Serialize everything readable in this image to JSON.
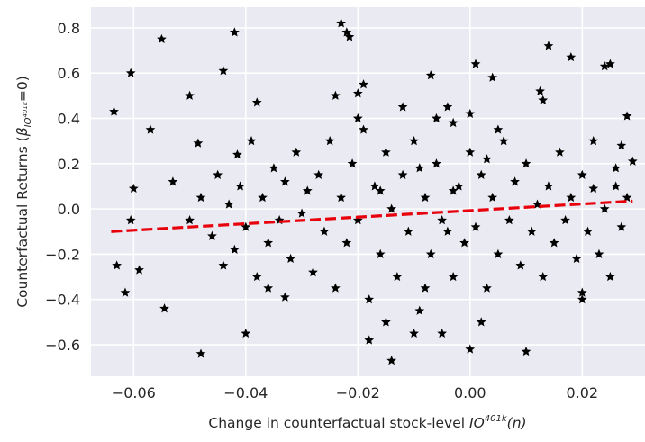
{
  "chart_data": {
    "type": "scatter",
    "xlabel": {
      "text": "Change in counterfactual stock-level ",
      "var": "IO",
      "sup": "401k",
      "arg": "(n)"
    },
    "ylabel": {
      "text": "Counterfactual Returns (",
      "beta": "β",
      "sub": "IO",
      "subsup": "401k",
      "end": "=0)"
    },
    "xlim": [
      -0.0676,
      0.0312
    ],
    "ylim": [
      -0.739,
      0.891
    ],
    "xticks": [
      {
        "value": -0.06,
        "label": "−0.06"
      },
      {
        "value": -0.04,
        "label": "−0.04"
      },
      {
        "value": -0.02,
        "label": "−0.02"
      },
      {
        "value": 0.0,
        "label": "0.00"
      },
      {
        "value": 0.02,
        "label": "0.02"
      }
    ],
    "yticks": [
      {
        "value": -0.6,
        "label": "−0.6"
      },
      {
        "value": -0.4,
        "label": "−0.4"
      },
      {
        "value": -0.2,
        "label": "−0.2"
      },
      {
        "value": 0.0,
        "label": "0.0"
      },
      0.2,
      0.4,
      0.6,
      0.8
    ],
    "grid": true,
    "color": "#000000",
    "x": [
      -0.0635,
      -0.063,
      -0.0615,
      -0.0605,
      -0.06,
      -0.0605,
      -0.059,
      -0.055,
      -0.0545,
      -0.057,
      -0.053,
      -0.05,
      -0.048,
      -0.0485,
      -0.044,
      -0.042,
      -0.04,
      -0.0415,
      -0.038,
      -0.023,
      -0.022,
      -0.0215,
      -0.019,
      -0.02,
      -0.024,
      -0.014,
      -0.018,
      -0.007,
      -0.003,
      0.001,
      0.004,
      0.01,
      0.014,
      0.018,
      0.024,
      0.025,
      0.028,
      0.029,
      0.027,
      0.02,
      0.02,
      0.0125,
      0.013,
      0.0,
      0.002,
      -0.005,
      0.022,
      0.026,
      -0.033,
      -0.036,
      -0.05,
      -0.048,
      -0.046,
      -0.045,
      -0.044,
      -0.043,
      -0.042,
      -0.041,
      -0.04,
      -0.039,
      -0.038,
      -0.037,
      -0.036,
      -0.035,
      -0.034,
      -0.033,
      -0.032,
      -0.031,
      -0.03,
      -0.029,
      -0.028,
      -0.027,
      -0.026,
      -0.025,
      -0.024,
      -0.023,
      -0.022,
      -0.021,
      -0.02,
      -0.019,
      -0.018,
      -0.017,
      -0.016,
      -0.015,
      -0.014,
      -0.013,
      -0.012,
      -0.011,
      -0.01,
      -0.009,
      -0.008,
      -0.007,
      -0.006,
      -0.005,
      -0.004,
      -0.003,
      -0.002,
      -0.001,
      0.0,
      0.001,
      0.002,
      0.003,
      0.004,
      0.005,
      0.006,
      0.007,
      0.008,
      0.009,
      0.01,
      0.011,
      0.012,
      0.013,
      0.014,
      0.015,
      0.016,
      0.017,
      0.018,
      0.019,
      0.02,
      0.021,
      0.022,
      0.023,
      0.024,
      0.025,
      0.026,
      0.027,
      0.028,
      -0.015,
      -0.01,
      -0.006,
      0.0,
      -0.008,
      0.005,
      -0.02,
      -0.012,
      -0.003,
      -0.009,
      -0.016,
      -0.004,
      0.003
    ],
    "values": [
      0.43,
      -0.25,
      -0.37,
      0.6,
      0.09,
      -0.05,
      -0.27,
      0.75,
      -0.44,
      0.35,
      0.12,
      0.5,
      -0.64,
      0.29,
      0.61,
      0.78,
      -0.55,
      0.24,
      0.47,
      0.82,
      0.78,
      0.76,
      0.55,
      0.51,
      0.5,
      -0.67,
      -0.58,
      0.59,
      0.38,
      0.64,
      0.58,
      -0.63,
      0.72,
      0.67,
      0.63,
      0.64,
      0.41,
      0.21,
      0.28,
      -0.37,
      -0.4,
      0.52,
      0.48,
      -0.62,
      -0.5,
      -0.55,
      0.09,
      0.1,
      -0.39,
      -0.35,
      -0.05,
      0.05,
      -0.12,
      0.15,
      -0.25,
      0.02,
      -0.18,
      0.1,
      -0.08,
      0.3,
      -0.3,
      0.05,
      -0.15,
      0.18,
      -0.05,
      0.12,
      -0.22,
      0.25,
      -0.02,
      0.08,
      -0.28,
      0.15,
      -0.1,
      0.3,
      -0.35,
      0.05,
      -0.15,
      0.2,
      -0.05,
      0.35,
      -0.4,
      0.1,
      -0.2,
      0.25,
      0.0,
      -0.3,
      0.15,
      -0.1,
      0.3,
      -0.45,
      0.05,
      -0.2,
      0.2,
      -0.05,
      0.45,
      -0.3,
      0.1,
      -0.15,
      0.25,
      -0.08,
      0.15,
      -0.35,
      0.05,
      -0.2,
      0.3,
      -0.05,
      0.12,
      -0.25,
      0.2,
      -0.1,
      0.02,
      -0.3,
      0.1,
      -0.15,
      0.25,
      -0.05,
      0.05,
      -0.22,
      0.15,
      -0.1,
      0.3,
      -0.2,
      0.0,
      -0.3,
      0.18,
      -0.08,
      0.05,
      -0.5,
      -0.55,
      0.4,
      0.42,
      -0.35,
      0.35,
      0.4,
      0.45,
      0.08,
      0.18,
      0.08,
      -0.1,
      0.22
    ],
    "fit": {
      "x": [
        -0.064,
        0.029
      ],
      "values": [
        -0.1,
        0.035
      ],
      "color": "#e8000b"
    }
  }
}
